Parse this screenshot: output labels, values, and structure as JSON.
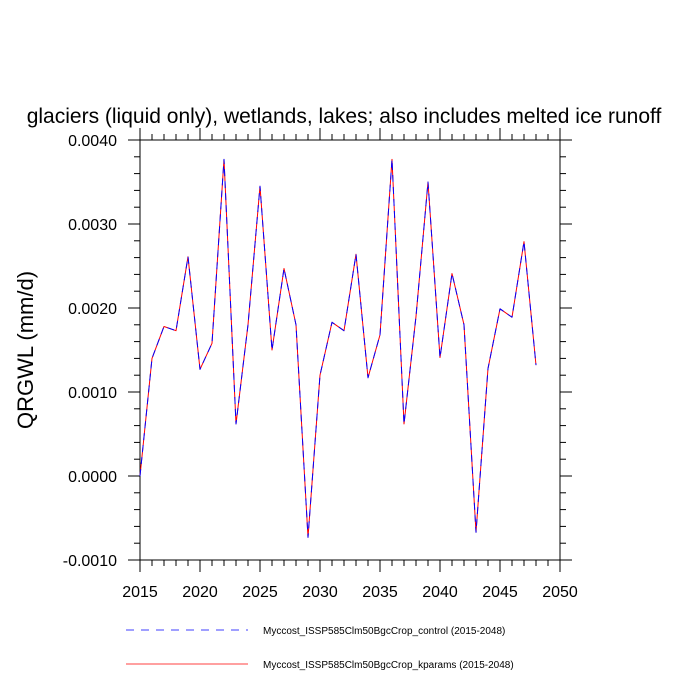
{
  "chart_data": {
    "type": "line",
    "title": "glaciers (liquid only), wetlands, lakes; also includes melted ice runoff",
    "xlabel": "",
    "ylabel": "QRGWL  (mm/d)",
    "xlim": [
      2015,
      2050
    ],
    "ylim": [
      -0.001,
      0.004
    ],
    "x_ticks": [
      2015,
      2020,
      2025,
      2030,
      2035,
      2040,
      2045,
      2050
    ],
    "x_tick_labels": [
      "2015",
      "2020",
      "2025",
      "2030",
      "2035",
      "2040",
      "2045",
      "2050"
    ],
    "y_ticks": [
      -0.001,
      0.0,
      0.001,
      0.002,
      0.003,
      0.004
    ],
    "y_tick_labels": [
      "-0.0010",
      "0.0000",
      "0.0010",
      "0.0020",
      "0.0030",
      "0.0040"
    ],
    "grid": false,
    "legend_position": "bottom",
    "x": [
      2015,
      2016,
      2017,
      2018,
      2019,
      2020,
      2021,
      2022,
      2023,
      2024,
      2025,
      2026,
      2027,
      2028,
      2029,
      2030,
      2031,
      2032,
      2033,
      2034,
      2035,
      2036,
      2037,
      2038,
      2039,
      2040,
      2041,
      2042,
      2043,
      2044,
      2045,
      2046,
      2047,
      2048
    ],
    "series": [
      {
        "name": "Myccost_ISSP585Clm50BgcCrop_control (2015-2048)",
        "color": "#0000ff",
        "dash": "dashed",
        "values": [
          0.0,
          0.0014,
          0.00178,
          0.00173,
          0.00261,
          0.00127,
          0.00158,
          0.00377,
          0.00062,
          0.0018,
          0.00345,
          0.0015,
          0.00247,
          0.0018,
          -0.00073,
          0.0012,
          0.00183,
          0.00173,
          0.00264,
          0.00117,
          0.00168,
          0.00377,
          0.00062,
          0.0019,
          0.0035,
          0.00141,
          0.00241,
          0.0018,
          -0.00067,
          0.00128,
          0.00199,
          0.00189,
          0.00279,
          0.00132
        ]
      },
      {
        "name": "Myccost_ISSP585Clm50BgcCrop_kparams (2015-2048)",
        "color": "#ff0000",
        "dash": "solid",
        "values": [
          0.0,
          0.0014,
          0.00178,
          0.00173,
          0.00261,
          0.00127,
          0.00158,
          0.00377,
          0.00062,
          0.0018,
          0.00345,
          0.0015,
          0.00247,
          0.0018,
          -0.00073,
          0.0012,
          0.00183,
          0.00173,
          0.00264,
          0.00117,
          0.00168,
          0.00377,
          0.00062,
          0.0019,
          0.0035,
          0.00141,
          0.00241,
          0.0018,
          -0.00067,
          0.00128,
          0.00199,
          0.00189,
          0.00279,
          0.00132
        ]
      }
    ]
  }
}
